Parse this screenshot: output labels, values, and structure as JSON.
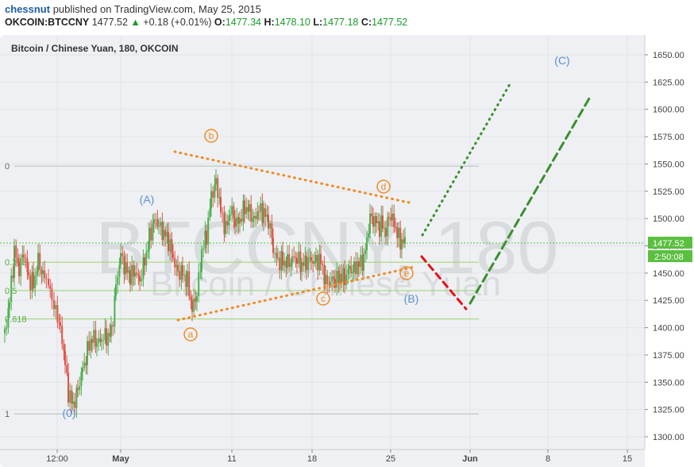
{
  "header": {
    "user": "chessnut",
    "published_text": "published on TradingView.com, May 25, 2015",
    "symbol": "OKCOIN:BTCCNY",
    "last": "1477.52",
    "change": "+0.18 (+0.01%)",
    "open_label": "O:",
    "open": "1477.34",
    "high_label": "H:",
    "high": "1478.10",
    "low_label": "L:",
    "low": "1477.18",
    "close_label": "C:",
    "close": "1477.52"
  },
  "chart": {
    "legend_title": "Bitcoin / Chinese Yuan, 180, OKCOIN",
    "watermark_main": "BTCCNY, 180",
    "watermark_sub": "Bitcoin / Chinese Yuan",
    "last_price_tag": "1477.52",
    "countdown_tag": "2:50:08",
    "colors": {
      "up": "#4caf50",
      "down": "#e05348",
      "fib": "#9bd36a",
      "fib_text": "#5aa83c",
      "orange": "#f08a24",
      "green_dash": "#3a8f2c",
      "red_dash": "#e0141c",
      "wave_blue": "#5a8fd0",
      "price_tag": "#5bbf3f"
    }
  },
  "chart_data": {
    "type": "candlestick",
    "title": "Bitcoin / Chinese Yuan, 180, OKCOIN",
    "y_axis": {
      "ticks": [
        "1650.00",
        "1625.00",
        "1600.00",
        "1575.00",
        "1550.00",
        "1525.00",
        "1500.00",
        "1475.00",
        "1450.00",
        "1425.00",
        "1400.00",
        "1375.00",
        "1350.00",
        "1325.00",
        "1300.00"
      ],
      "range": [
        1293,
        1660
      ]
    },
    "x_axis": {
      "ticks": [
        "12:00",
        "May",
        "11",
        "18",
        "25",
        "Jun",
        "8",
        "15"
      ]
    },
    "fib_levels": [
      {
        "label": "0",
        "price": 1548
      },
      {
        "label": "0.382",
        "price": 1460
      },
      {
        "label": "0.5",
        "price": 1434
      },
      {
        "label": "0.618",
        "price": 1408
      },
      {
        "label": "1",
        "price": 1321
      }
    ],
    "wave_labels_orange": [
      "a",
      "b",
      "c",
      "d",
      "e"
    ],
    "wave_labels_blue": [
      "(0)",
      "(A)",
      "(B)",
      "(C)"
    ],
    "price_path": [
      {
        "t": 0,
        "p": 1395
      },
      {
        "t": 6,
        "p": 1425
      },
      {
        "t": 12,
        "p": 1470
      },
      {
        "t": 18,
        "p": 1455
      },
      {
        "t": 24,
        "p": 1468
      },
      {
        "t": 30,
        "p": 1445
      },
      {
        "t": 36,
        "p": 1440
      },
      {
        "t": 42,
        "p": 1460
      },
      {
        "t": 48,
        "p": 1450
      },
      {
        "t": 55,
        "p": 1440
      },
      {
        "t": 62,
        "p": 1420
      },
      {
        "t": 70,
        "p": 1400
      },
      {
        "t": 76,
        "p": 1365
      },
      {
        "t": 80,
        "p": 1340
      },
      {
        "t": 86,
        "p": 1328
      },
      {
        "t": 92,
        "p": 1345
      },
      {
        "t": 98,
        "p": 1360
      },
      {
        "t": 104,
        "p": 1380
      },
      {
        "t": 110,
        "p": 1392
      },
      {
        "t": 116,
        "p": 1385
      },
      {
        "t": 122,
        "p": 1392
      },
      {
        "t": 128,
        "p": 1390
      },
      {
        "t": 134,
        "p": 1395
      },
      {
        "t": 140,
        "p": 1440
      },
      {
        "t": 146,
        "p": 1465
      },
      {
        "t": 152,
        "p": 1455
      },
      {
        "t": 158,
        "p": 1448
      },
      {
        "t": 164,
        "p": 1450
      },
      {
        "t": 170,
        "p": 1445
      },
      {
        "t": 176,
        "p": 1460
      },
      {
        "t": 182,
        "p": 1482
      },
      {
        "t": 188,
        "p": 1500
      },
      {
        "t": 194,
        "p": 1492
      },
      {
        "t": 200,
        "p": 1488
      },
      {
        "t": 206,
        "p": 1480
      },
      {
        "t": 212,
        "p": 1462
      },
      {
        "t": 218,
        "p": 1452
      },
      {
        "t": 224,
        "p": 1448
      },
      {
        "t": 230,
        "p": 1442
      },
      {
        "t": 236,
        "p": 1418
      },
      {
        "t": 242,
        "p": 1430
      },
      {
        "t": 248,
        "p": 1472
      },
      {
        "t": 254,
        "p": 1485
      },
      {
        "t": 260,
        "p": 1520
      },
      {
        "t": 266,
        "p": 1535
      },
      {
        "t": 272,
        "p": 1505
      },
      {
        "t": 278,
        "p": 1490
      },
      {
        "t": 284,
        "p": 1510
      },
      {
        "t": 290,
        "p": 1495
      },
      {
        "t": 296,
        "p": 1500
      },
      {
        "t": 302,
        "p": 1510
      },
      {
        "t": 308,
        "p": 1505
      },
      {
        "t": 314,
        "p": 1500
      },
      {
        "t": 320,
        "p": 1507
      },
      {
        "t": 326,
        "p": 1505
      },
      {
        "t": 332,
        "p": 1500
      },
      {
        "t": 338,
        "p": 1470
      },
      {
        "t": 344,
        "p": 1462
      },
      {
        "t": 350,
        "p": 1460
      },
      {
        "t": 356,
        "p": 1458
      },
      {
        "t": 362,
        "p": 1465
      },
      {
        "t": 368,
        "p": 1462
      },
      {
        "t": 374,
        "p": 1458
      },
      {
        "t": 380,
        "p": 1462
      },
      {
        "t": 386,
        "p": 1460
      },
      {
        "t": 392,
        "p": 1462
      },
      {
        "t": 398,
        "p": 1460
      },
      {
        "t": 404,
        "p": 1440
      },
      {
        "t": 410,
        "p": 1445
      },
      {
        "t": 416,
        "p": 1442
      },
      {
        "t": 422,
        "p": 1448
      },
      {
        "t": 428,
        "p": 1446
      },
      {
        "t": 434,
        "p": 1452
      },
      {
        "t": 440,
        "p": 1455
      },
      {
        "t": 446,
        "p": 1458
      },
      {
        "t": 452,
        "p": 1462
      },
      {
        "t": 456,
        "p": 1480
      },
      {
        "t": 460,
        "p": 1500
      },
      {
        "t": 464,
        "p": 1498
      },
      {
        "t": 468,
        "p": 1496
      },
      {
        "t": 472,
        "p": 1492
      },
      {
        "t": 476,
        "p": 1495
      },
      {
        "t": 480,
        "p": 1488
      },
      {
        "t": 484,
        "p": 1505
      },
      {
        "t": 488,
        "p": 1500
      },
      {
        "t": 492,
        "p": 1492
      },
      {
        "t": 496,
        "p": 1482
      },
      {
        "t": 500,
        "p": 1478
      },
      {
        "t": 504,
        "p": 1477
      }
    ]
  }
}
